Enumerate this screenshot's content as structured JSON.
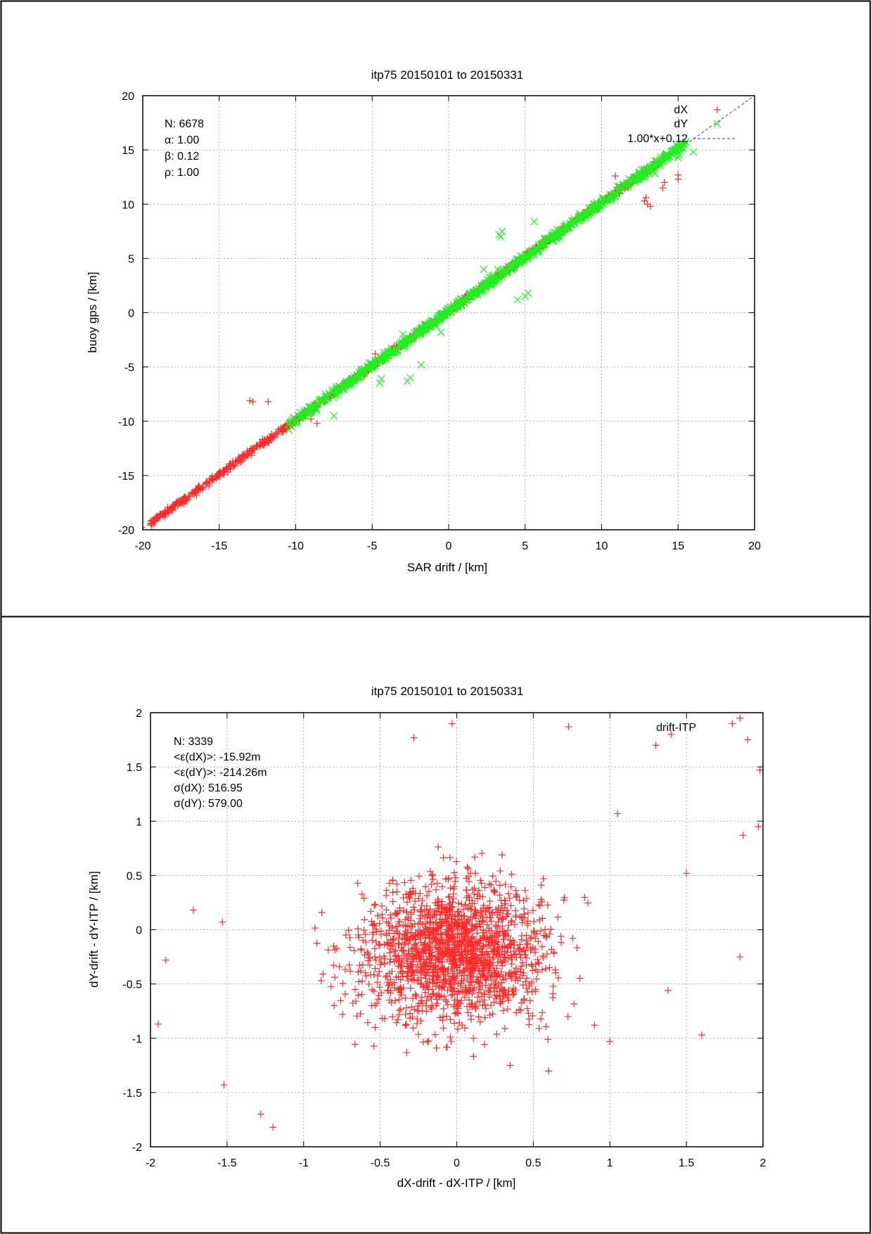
{
  "chart_data": [
    {
      "type": "scatter",
      "title": "itp75 20150101 to 20150331",
      "xlabel": "SAR drift / [km]",
      "ylabel": "buoy gps / [km]",
      "xlim": [
        -20,
        20
      ],
      "ylim": [
        -20,
        20
      ],
      "xticks": [
        "-20",
        "-15",
        "-10",
        "-5",
        "0",
        "5",
        "10",
        "15",
        "20"
      ],
      "yticks": [
        "-20",
        "-15",
        "-10",
        "-5",
        "0",
        "5",
        "10",
        "15",
        "20"
      ],
      "grid": true,
      "legend_position": "top-right",
      "annotations": [
        "N: 6678",
        "α: 1.00",
        "β: 0.12",
        "ρ: 1.00"
      ],
      "fit": {
        "label": "1.00*x+0.12",
        "slope": 1.0,
        "intercept": 0.12,
        "color": "#3333ff"
      },
      "series": [
        {
          "name": "dX",
          "marker": "plus",
          "color": "#ff2a2a",
          "points": [],
          "point_count": 0
        },
        {
          "name": "dY",
          "marker": "cross",
          "color": "#22ee22",
          "points": [],
          "point_count": 0
        }
      ]
    },
    {
      "type": "scatter",
      "title": "itp75 20150101 to 20150331",
      "xlabel": "dX-drift - dX-ITP / [km]",
      "ylabel": "dY-drift - dY-ITP / [km]",
      "xlim": [
        -2,
        2
      ],
      "ylim": [
        -2,
        2
      ],
      "xticks": [
        "-2",
        "-1.5",
        "-1",
        "-0.5",
        "0",
        "0.5",
        "1",
        "1.5",
        "2"
      ],
      "yticks": [
        "-2",
        "-1.5",
        "-1",
        "-0.5",
        "0",
        "0.5",
        "1",
        "1.5",
        "2"
      ],
      "grid": true,
      "legend_position": "top-right",
      "annotations": [
        "N: 3339",
        "<ε(dX)>:  -15.92m",
        "<ε(dY)>: -214.26m",
        "σ(dX):  516.95",
        "σ(dY):  579.00"
      ],
      "series": [
        {
          "name": "drift-ITP",
          "marker": "plus",
          "color": "#ff2a2a",
          "points": [],
          "point_count": 0
        }
      ]
    }
  ]
}
